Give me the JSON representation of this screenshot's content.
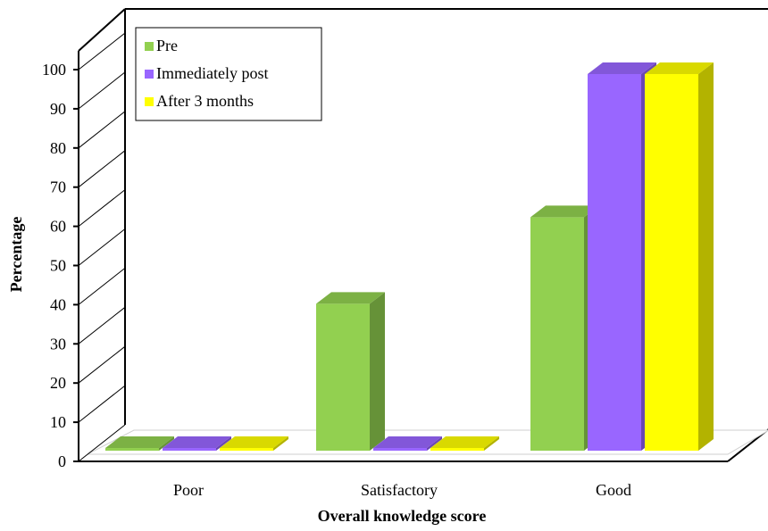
{
  "chart_data": {
    "type": "bar",
    "title": "",
    "xlabel": "Overall knowledge score",
    "ylabel": "Percentage",
    "categories": [
      "Poor",
      "Satisfactory",
      "Good"
    ],
    "series": [
      {
        "name": "Pre",
        "values": [
          0,
          39,
          62
        ],
        "color": "#92d050"
      },
      {
        "name": "Immediately post",
        "values": [
          0,
          0,
          100
        ],
        "color": "#9966ff"
      },
      {
        "name": "After 3 months",
        "values": [
          0,
          0,
          100
        ],
        "color": "#ffff00"
      }
    ],
    "ylim": [
      0,
      100
    ],
    "yticks": [
      0,
      10,
      20,
      30,
      40,
      50,
      60,
      70,
      80,
      90,
      100
    ],
    "grid": false,
    "legend_position": "top-left",
    "style": "3d"
  }
}
